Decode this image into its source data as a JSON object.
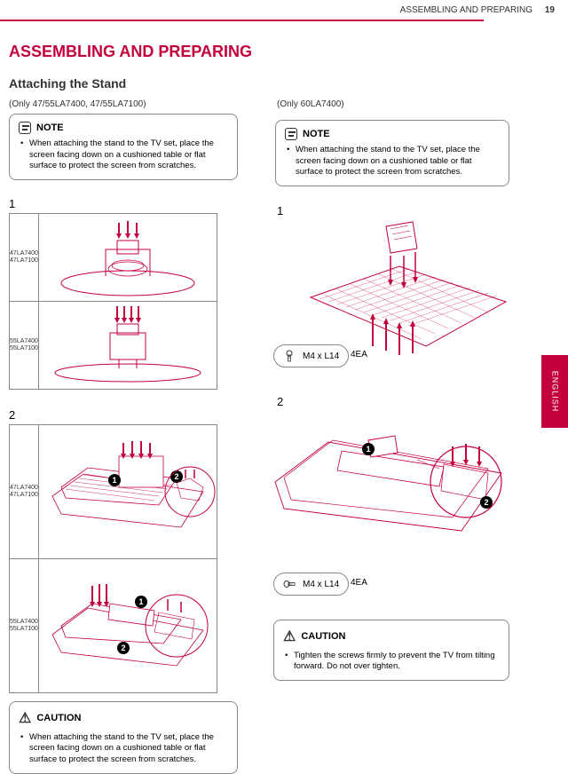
{
  "header": {
    "right_text": "ASSEMBLING AND PREPARING",
    "page_number": "19"
  },
  "section_title": "ASSEMBLING AND PREPARING",
  "subsection_title": "Attaching the Stand",
  "left": {
    "model_line": "(Only 47/55LA7400, 47/55LA7100)",
    "note": {
      "header": "NOTE",
      "text": "When attaching the stand to the TV set, place the screen facing down on a cushioned table or flat surface to protect the screen from scratches."
    },
    "step1_label": "1",
    "step1_models": {
      "a": "47LA7400\n47LA7100",
      "b": "55LA7400\n55LA7100"
    },
    "step2_label": "2",
    "step2_models": {
      "a": "47LA7400\n47LA7100",
      "b": "55LA7400\n55LA7100"
    },
    "caution": {
      "header": "CAUTION",
      "text": "When attaching the stand to the TV set, place the screen facing down on a cushioned table or flat surface to protect the screen from scratches."
    }
  },
  "right": {
    "model_line": "(Only 60LA7400)",
    "note": {
      "header": "NOTE",
      "text": "When attaching the stand to the TV set, place the screen facing down on a cushioned table or flat surface to protect the screen from scratches."
    },
    "step1_label": "1",
    "step2_label": "2",
    "screw_m4_label": "M4 x L14",
    "screw_4ea": "4EA",
    "screw_m4_label2": "M4 x L14",
    "screw_4ea2": "4EA",
    "caution": {
      "header": "CAUTION",
      "text": "Tighten the screws firmly to prevent the TV from tilting forward. Do not over tighten."
    }
  },
  "side_tab": "ENGLISH",
  "colors": {
    "accent": "#c3003c",
    "border": "#888888"
  }
}
